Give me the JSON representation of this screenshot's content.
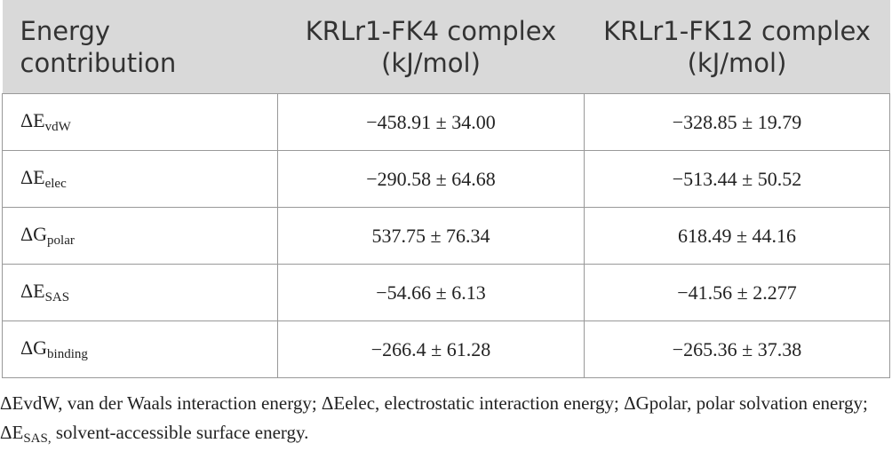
{
  "table": {
    "header": [
      "Energy contribution",
      "KRLr1-FK4 complex (kJ/mol)",
      "KRLr1-FK12 complex (kJ/mol)"
    ],
    "rows": [
      [
        {
          "symbol": "ΔE",
          "sub": "vdW"
        },
        "−458.91 ± 34.00",
        "−328.85 ± 19.79"
      ],
      [
        {
          "symbol": "ΔE",
          "sub": "elec"
        },
        "−290.58 ± 64.68",
        "−513.44 ± 50.52"
      ],
      [
        {
          "symbol": "ΔG",
          "sub": "polar"
        },
        "537.75 ± 76.34",
        "618.49 ± 44.16"
      ],
      [
        {
          "symbol": "ΔE",
          "sub": "SAS"
        },
        "−54.66 ± 6.13",
        "−41.56 ± 2.277"
      ],
      [
        {
          "symbol": "ΔG",
          "sub": "binding"
        },
        "−266.4 ± 61.28",
        "−265.36 ± 37.38"
      ]
    ]
  },
  "footnote": {
    "text": "ΔEvdW, van der Waals interaction energy; ΔEelec, electrostatic interaction energy; ΔGpolar, polar solvation energy; ΔE",
    "sub": "SAS,",
    "tail": " solvent-accessible surface energy."
  }
}
